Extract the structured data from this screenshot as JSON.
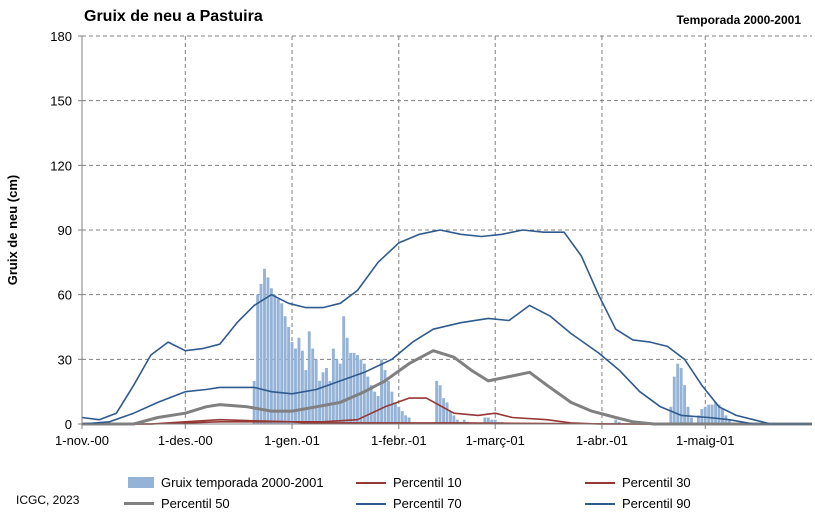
{
  "title": "Gruix de neu a Pastuira",
  "subtitle": "Temporada 2000-2001",
  "footer": "ICGC, 2023",
  "chart_data": {
    "type": "bar",
    "ylabel": "Gruix de neu (cm)",
    "xlabel": "",
    "ylim": [
      0,
      180
    ],
    "yticks": [
      0,
      30,
      60,
      90,
      120,
      150,
      180
    ],
    "xlim": [
      0,
      212
    ],
    "xticks": [
      {
        "day": 0,
        "label": "1-nov.-00"
      },
      {
        "day": 30,
        "label": "1-des.-00"
      },
      {
        "day": 61,
        "label": "1-gen.-01"
      },
      {
        "day": 92,
        "label": "1-febr.-01"
      },
      {
        "day": 120,
        "label": "1-març-01"
      },
      {
        "day": 151,
        "label": "1-abr.-01"
      },
      {
        "day": 181,
        "label": "1-maig-01"
      }
    ],
    "grid": true,
    "legend_position": "bottom",
    "colors": {
      "bars": "#95B3D7",
      "p10": "#953735",
      "p30": "#953735",
      "p50": "#808080",
      "p70": "#2F5A8E",
      "p90": "#2F5A8E"
    },
    "bars": {
      "name": "Gruix temporada 2000-2001",
      "days": [
        50,
        51,
        52,
        53,
        54,
        55,
        56,
        57,
        58,
        59,
        60,
        61,
        62,
        63,
        64,
        65,
        66,
        67,
        68,
        69,
        70,
        71,
        72,
        73,
        74,
        75,
        76,
        77,
        78,
        79,
        80,
        81,
        82,
        83,
        84,
        85,
        86,
        87,
        88,
        89,
        90,
        91,
        92,
        93,
        94,
        95,
        103,
        104,
        105,
        106,
        107,
        108,
        109,
        110,
        111,
        112,
        117,
        118,
        119,
        120,
        121,
        122,
        155,
        156,
        171,
        172,
        173,
        174,
        175,
        176,
        177,
        179,
        180,
        181,
        182,
        183,
        184,
        185,
        186,
        187,
        188
      ],
      "values": [
        20,
        60,
        65,
        72,
        68,
        63,
        60,
        58,
        56,
        50,
        45,
        38,
        35,
        40,
        34,
        25,
        43,
        35,
        30,
        20,
        24,
        26,
        20,
        35,
        30,
        28,
        50,
        40,
        33,
        33,
        32,
        30,
        28,
        22,
        18,
        15,
        13,
        30,
        25,
        20,
        15,
        10,
        8,
        6,
        4,
        3,
        20,
        18,
        12,
        10,
        6,
        4,
        2,
        1,
        2,
        1,
        3,
        3,
        2,
        2,
        1,
        1,
        2,
        1,
        8,
        22,
        28,
        26,
        18,
        8,
        3,
        4,
        7,
        8,
        9,
        9,
        10,
        9,
        7,
        4,
        2
      ]
    },
    "series": [
      {
        "key": "p10",
        "name": "Percentil 10",
        "points": [
          [
            0,
            0
          ],
          [
            20,
            0
          ],
          [
            30,
            0.5
          ],
          [
            40,
            1
          ],
          [
            50,
            1
          ],
          [
            61,
            1
          ],
          [
            65,
            0.5
          ],
          [
            80,
            0.5
          ],
          [
            92,
            0.5
          ],
          [
            110,
            0.5
          ],
          [
            130,
            0.3
          ],
          [
            160,
            0
          ],
          [
            212,
            0
          ]
        ]
      },
      {
        "key": "p30",
        "name": "Percentil 30",
        "points": [
          [
            0,
            0
          ],
          [
            20,
            0
          ],
          [
            30,
            1
          ],
          [
            40,
            2
          ],
          [
            50,
            1.5
          ],
          [
            61,
            1
          ],
          [
            70,
            1
          ],
          [
            80,
            2
          ],
          [
            88,
            8
          ],
          [
            95,
            12
          ],
          [
            100,
            12
          ],
          [
            108,
            5
          ],
          [
            115,
            4
          ],
          [
            120,
            5
          ],
          [
            125,
            3
          ],
          [
            135,
            2
          ],
          [
            142,
            0.5
          ],
          [
            150,
            0
          ],
          [
            212,
            0
          ]
        ]
      },
      {
        "key": "p50",
        "name": "Percentil 50",
        "points": [
          [
            0,
            0
          ],
          [
            15,
            0
          ],
          [
            22,
            3
          ],
          [
            30,
            5
          ],
          [
            36,
            8
          ],
          [
            40,
            9
          ],
          [
            48,
            8
          ],
          [
            55,
            6
          ],
          [
            61,
            6
          ],
          [
            68,
            8
          ],
          [
            75,
            10
          ],
          [
            82,
            15
          ],
          [
            88,
            20
          ],
          [
            95,
            28
          ],
          [
            102,
            34
          ],
          [
            108,
            31
          ],
          [
            113,
            25
          ],
          [
            118,
            20
          ],
          [
            124,
            22
          ],
          [
            130,
            24
          ],
          [
            135,
            18
          ],
          [
            142,
            10
          ],
          [
            148,
            6
          ],
          [
            155,
            3
          ],
          [
            160,
            1
          ],
          [
            166,
            0
          ],
          [
            212,
            0
          ]
        ]
      },
      {
        "key": "p70",
        "name": "Percentil 70",
        "points": [
          [
            0,
            0
          ],
          [
            8,
            1
          ],
          [
            15,
            5
          ],
          [
            22,
            10
          ],
          [
            30,
            15
          ],
          [
            36,
            16
          ],
          [
            40,
            17
          ],
          [
            45,
            17
          ],
          [
            50,
            17
          ],
          [
            55,
            15
          ],
          [
            61,
            14
          ],
          [
            68,
            16
          ],
          [
            75,
            20
          ],
          [
            82,
            24
          ],
          [
            90,
            30
          ],
          [
            96,
            38
          ],
          [
            102,
            44
          ],
          [
            110,
            47
          ],
          [
            118,
            49
          ],
          [
            124,
            48
          ],
          [
            130,
            55
          ],
          [
            136,
            50
          ],
          [
            142,
            42
          ],
          [
            150,
            33
          ],
          [
            156,
            25
          ],
          [
            162,
            15
          ],
          [
            168,
            8
          ],
          [
            174,
            4
          ],
          [
            182,
            3
          ],
          [
            188,
            2
          ],
          [
            195,
            0
          ],
          [
            212,
            0
          ]
        ]
      },
      {
        "key": "p90",
        "name": "Percentil 90",
        "points": [
          [
            0,
            3
          ],
          [
            5,
            2
          ],
          [
            10,
            5
          ],
          [
            15,
            18
          ],
          [
            20,
            32
          ],
          [
            25,
            38
          ],
          [
            30,
            34
          ],
          [
            35,
            35
          ],
          [
            40,
            37
          ],
          [
            45,
            47
          ],
          [
            50,
            55
          ],
          [
            55,
            60
          ],
          [
            60,
            56
          ],
          [
            65,
            54
          ],
          [
            70,
            54
          ],
          [
            75,
            56
          ],
          [
            80,
            62
          ],
          [
            86,
            75
          ],
          [
            92,
            84
          ],
          [
            98,
            88
          ],
          [
            104,
            90
          ],
          [
            110,
            88
          ],
          [
            116,
            87
          ],
          [
            122,
            88
          ],
          [
            128,
            90
          ],
          [
            134,
            89
          ],
          [
            140,
            89
          ],
          [
            145,
            78
          ],
          [
            150,
            60
          ],
          [
            155,
            44
          ],
          [
            160,
            39
          ],
          [
            165,
            38
          ],
          [
            170,
            36
          ],
          [
            175,
            30
          ],
          [
            180,
            18
          ],
          [
            185,
            8
          ],
          [
            190,
            4
          ],
          [
            195,
            2
          ],
          [
            200,
            0
          ],
          [
            212,
            0
          ]
        ]
      }
    ]
  }
}
